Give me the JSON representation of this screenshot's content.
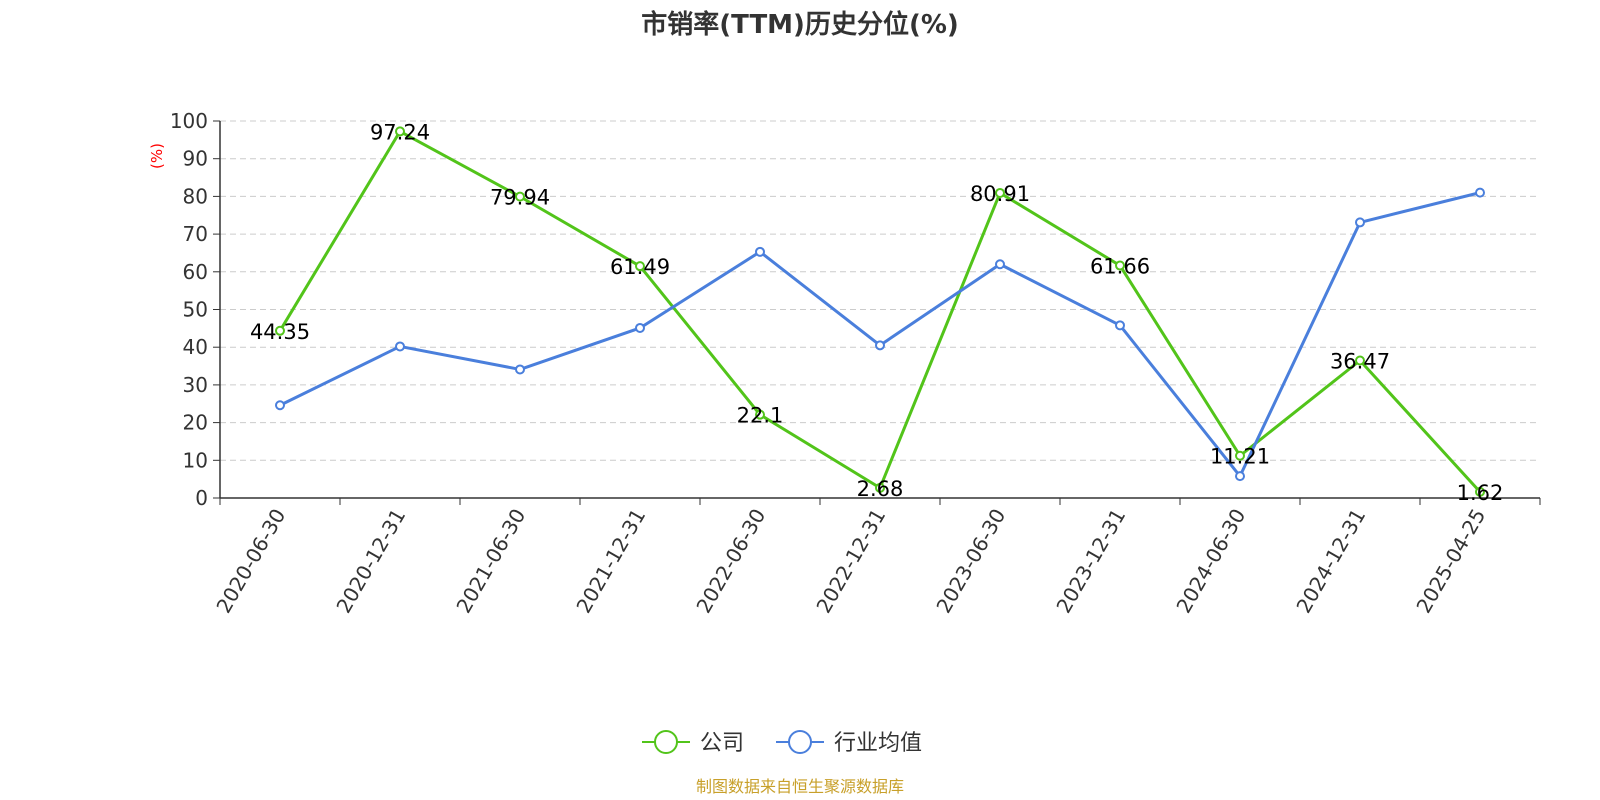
{
  "chart_data": {
    "type": "line",
    "title": "市销率(TTM)历史分位(%)",
    "ylabel": "(%)",
    "ylim": [
      0,
      100
    ],
    "yticks": [
      0,
      10,
      20,
      30,
      40,
      50,
      60,
      70,
      80,
      90,
      100
    ],
    "grid": true,
    "legend_position": "bottom-center",
    "categories": [
      "2020-06-30",
      "2020-12-31",
      "2021-06-30",
      "2021-12-31",
      "2022-06-30",
      "2022-12-31",
      "2023-06-30",
      "2023-12-31",
      "2024-06-30",
      "2024-12-31",
      "2025-04-25"
    ],
    "series": [
      {
        "name": "公司",
        "color": "#52c41a",
        "values": [
          44.35,
          97.24,
          79.94,
          61.49,
          22.1,
          2.68,
          80.91,
          61.66,
          11.21,
          36.47,
          1.62
        ],
        "labels_shown": true
      },
      {
        "name": "行业均值",
        "color": "#4a7fdc",
        "values": [
          24.6,
          40.2,
          34.1,
          45.1,
          65.3,
          40.5,
          62.0,
          45.8,
          5.8,
          73.1,
          81.0
        ],
        "labels_shown": false
      }
    ],
    "source": "制图数据来自恒生聚源数据库"
  }
}
